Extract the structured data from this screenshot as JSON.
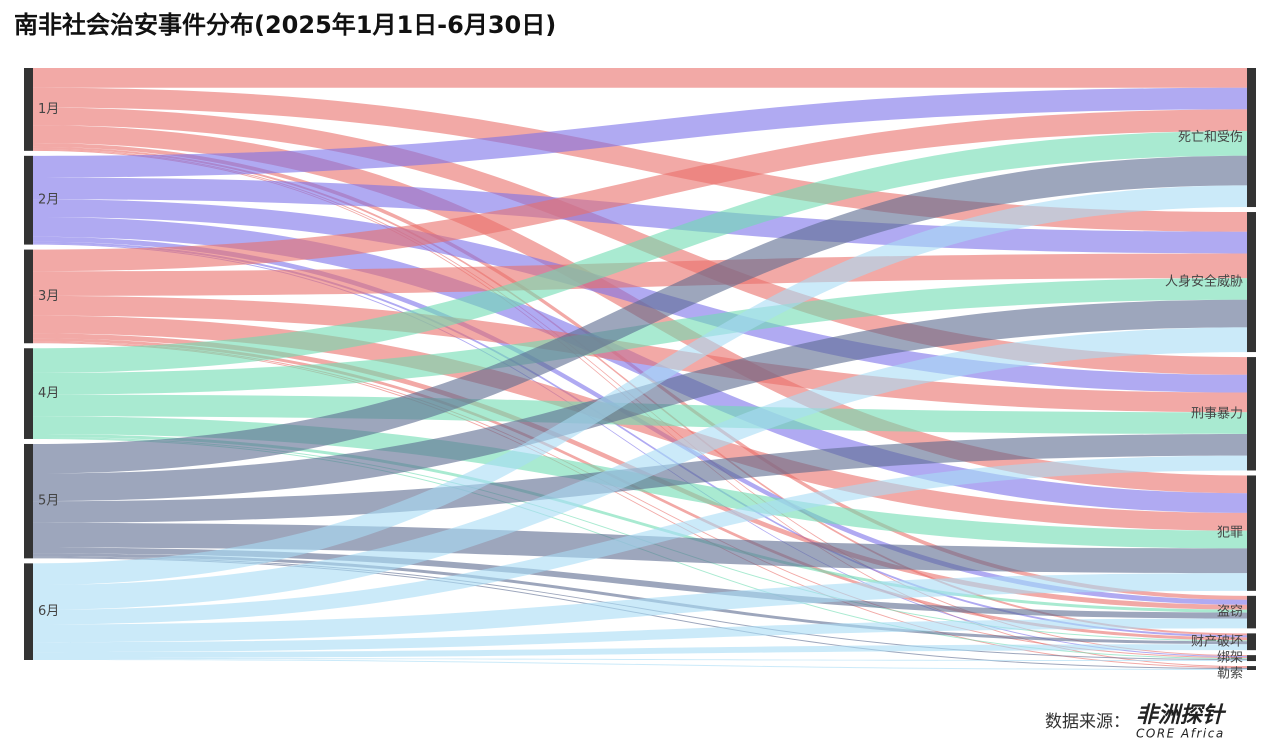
{
  "chart_data": {
    "type": "sankey",
    "title": "南非社会治安事件分布(2025年1月1日-6月30日)",
    "nodes": [
      {
        "name": "1月",
        "color": "#ea6f6a"
      },
      {
        "name": "2月",
        "color": "#7b72e9"
      },
      {
        "name": "3月",
        "color": "#ea6f6a"
      },
      {
        "name": "4月",
        "color": "#6fdcb2"
      },
      {
        "name": "5月",
        "color": "#5c6b8f"
      },
      {
        "name": "6月",
        "color": "#a9dcf5"
      },
      {
        "name": "死亡和受伤"
      },
      {
        "name": "人身安全威胁"
      },
      {
        "name": "刑事暴力"
      },
      {
        "name": "犯罪"
      },
      {
        "name": "盗窃"
      },
      {
        "name": "财产破坏"
      },
      {
        "name": "绑架"
      },
      {
        "name": "勒索"
      }
    ],
    "links": [
      {
        "source": 0,
        "target": 6,
        "value": 20
      },
      {
        "source": 0,
        "target": 7,
        "value": 20
      },
      {
        "source": 0,
        "target": 8,
        "value": 18
      },
      {
        "source": 0,
        "target": 9,
        "value": 18
      },
      {
        "source": 0,
        "target": 10,
        "value": 4
      },
      {
        "source": 0,
        "target": 11,
        "value": 2
      },
      {
        "source": 0,
        "target": 12,
        "value": 1
      },
      {
        "source": 0,
        "target": 13,
        "value": 1
      },
      {
        "source": 1,
        "target": 6,
        "value": 22
      },
      {
        "source": 1,
        "target": 7,
        "value": 22
      },
      {
        "source": 1,
        "target": 8,
        "value": 18
      },
      {
        "source": 1,
        "target": 9,
        "value": 20
      },
      {
        "source": 1,
        "target": 10,
        "value": 5
      },
      {
        "source": 1,
        "target": 11,
        "value": 2
      },
      {
        "source": 1,
        "target": 12,
        "value": 1
      },
      {
        "source": 2,
        "target": 6,
        "value": 22
      },
      {
        "source": 2,
        "target": 7,
        "value": 25
      },
      {
        "source": 2,
        "target": 8,
        "value": 20
      },
      {
        "source": 2,
        "target": 9,
        "value": 18
      },
      {
        "source": 2,
        "target": 10,
        "value": 5
      },
      {
        "source": 2,
        "target": 11,
        "value": 3
      },
      {
        "source": 2,
        "target": 12,
        "value": 1
      },
      {
        "source": 2,
        "target": 13,
        "value": 1
      },
      {
        "source": 3,
        "target": 6,
        "value": 25
      },
      {
        "source": 3,
        "target": 7,
        "value": 22
      },
      {
        "source": 3,
        "target": 8,
        "value": 22
      },
      {
        "source": 3,
        "target": 9,
        "value": 18
      },
      {
        "source": 3,
        "target": 10,
        "value": 3
      },
      {
        "source": 3,
        "target": 11,
        "value": 1
      },
      {
        "source": 3,
        "target": 12,
        "value": 1
      },
      {
        "source": 4,
        "target": 6,
        "value": 30
      },
      {
        "source": 4,
        "target": 7,
        "value": 28
      },
      {
        "source": 4,
        "target": 8,
        "value": 22
      },
      {
        "source": 4,
        "target": 9,
        "value": 25
      },
      {
        "source": 4,
        "target": 10,
        "value": 6
      },
      {
        "source": 4,
        "target": 11,
        "value": 3
      },
      {
        "source": 4,
        "target": 12,
        "value": 1
      },
      {
        "source": 4,
        "target": 13,
        "value": 1
      },
      {
        "source": 5,
        "target": 6,
        "value": 22
      },
      {
        "source": 5,
        "target": 7,
        "value": 25
      },
      {
        "source": 5,
        "target": 8,
        "value": 15
      },
      {
        "source": 5,
        "target": 9,
        "value": 18
      },
      {
        "source": 5,
        "target": 10,
        "value": 10
      },
      {
        "source": 5,
        "target": 11,
        "value": 6
      },
      {
        "source": 5,
        "target": 12,
        "value": 1
      },
      {
        "source": 5,
        "target": 13,
        "value": 1
      }
    ]
  },
  "footer": {
    "label": "数据来源：",
    "logo": "非洲探针",
    "logo_sub": "CORE Africa"
  }
}
